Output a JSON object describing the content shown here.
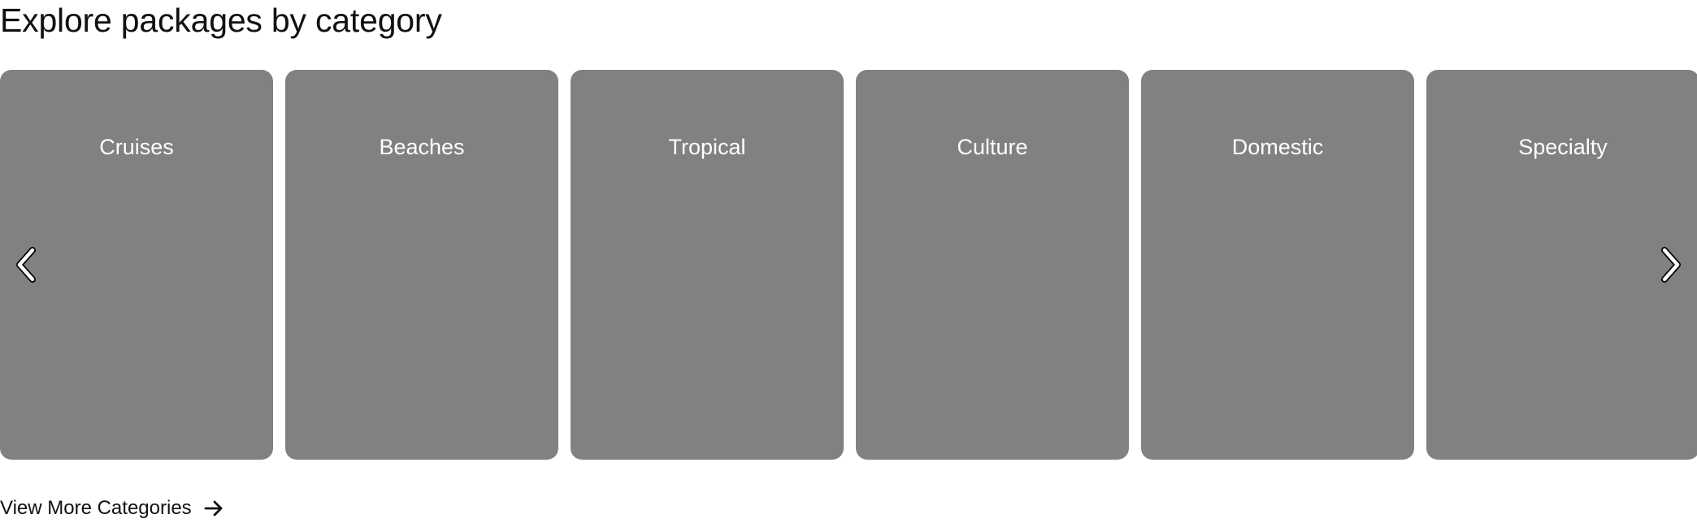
{
  "section": {
    "title": "Explore packages by category"
  },
  "carousel": {
    "previous_icon": "chevron-left-icon",
    "next_icon": "chevron-right-icon",
    "categories": [
      {
        "label": "Cruises"
      },
      {
        "label": "Beaches"
      },
      {
        "label": "Tropical"
      },
      {
        "label": "Culture"
      },
      {
        "label": "Domestic"
      },
      {
        "label": "Specialty"
      }
    ]
  },
  "footer": {
    "view_more_label": "View More Categories",
    "view_more_icon": "arrow-right-icon"
  },
  "colors": {
    "card_background": "#828081",
    "text": "#111111",
    "card_text": "#ffffff"
  }
}
